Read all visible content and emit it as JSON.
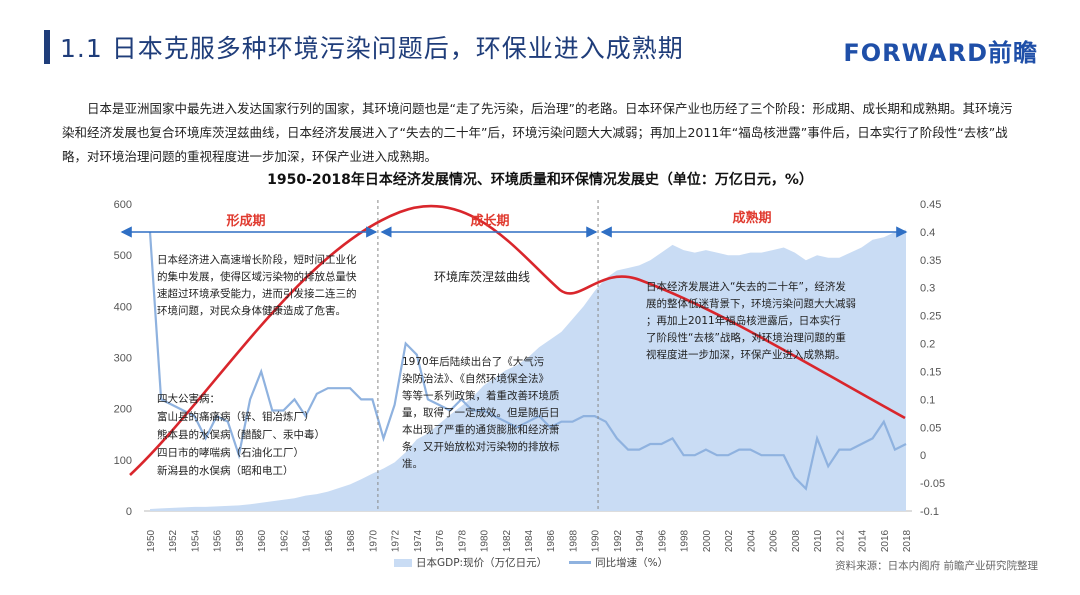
{
  "header": {
    "title": "1.1  日本克服多种环境污染问题后，环保业进入成熟期",
    "logo": "FORWARD前瞻"
  },
  "intro": "日本是亚洲国家中最先进入发达国家行列的国家，其环境问题也是“走了先污染，后治理”的老路。日本环保产业也历经了三个阶段：形成期、成长期和成熟期。其环境污染和经济发展也复合环境库茨涅兹曲线，日本经济发展进入了“失去的二十年”后，环境污染问题大大减弱；再加上2011年“福岛核泄露”事件后，日本实行了阶段性“去核”战略，对环境治理问题的重视程度进一步加深，环保产业进入成熟期。",
  "source": "资料来源：日本内阁府  前瞻产业研究院整理",
  "colors": {
    "area": "#c9dcf4",
    "growth_line": "#8fb2df",
    "kuznets": "#d9262c",
    "phase": "#e03a2f",
    "arrow": "#2f6fc4"
  },
  "chart_data": {
    "type": "area",
    "title": "1950-2018年日本经济发展情况、环境质量和环保情况发展史（单位：万亿日元，%）",
    "x": [
      1950,
      1951,
      1952,
      1953,
      1954,
      1955,
      1956,
      1957,
      1958,
      1959,
      1960,
      1961,
      1962,
      1963,
      1964,
      1965,
      1966,
      1967,
      1968,
      1969,
      1970,
      1971,
      1972,
      1973,
      1974,
      1975,
      1976,
      1977,
      1978,
      1979,
      1980,
      1981,
      1982,
      1983,
      1984,
      1985,
      1986,
      1987,
      1988,
      1989,
      1990,
      1991,
      1992,
      1993,
      1994,
      1995,
      1996,
      1997,
      1998,
      1999,
      2000,
      2001,
      2002,
      2003,
      2004,
      2005,
      2006,
      2007,
      2008,
      2009,
      2010,
      2011,
      2012,
      2013,
      2014,
      2015,
      2016,
      2017,
      2018
    ],
    "x_ticks": [
      "1950",
      "1952",
      "1954",
      "1956",
      "1958",
      "1960",
      "1962",
      "1964",
      "1966",
      "1968",
      "1970",
      "1972",
      "1974",
      "1976",
      "1978",
      "1980",
      "1982",
      "1984",
      "1986",
      "1988",
      "1990",
      "1992",
      "1994",
      "1996",
      "1998",
      "2000",
      "2002",
      "2004",
      "2006",
      "2008",
      "2010",
      "2012",
      "2014",
      "2016",
      "2018"
    ],
    "yleft_ticks": [
      0,
      100,
      200,
      300,
      400,
      500,
      600
    ],
    "yright_ticks": [
      -0.1,
      -0.05,
      0,
      0.05,
      0.1,
      0.15,
      0.2,
      0.25,
      0.3,
      0.35,
      0.4,
      0.45
    ],
    "ylim_left": [
      0,
      600
    ],
    "ylim_right": [
      -0.1,
      0.45
    ],
    "series": [
      {
        "name": "日本GDP:现价（万亿日元）",
        "axis": "left",
        "values": [
          4,
          5,
          6,
          7,
          8,
          8,
          9,
          10,
          11,
          13,
          16,
          19,
          22,
          25,
          30,
          33,
          38,
          45,
          52,
          62,
          73,
          83,
          95,
          115,
          140,
          152,
          170,
          188,
          205,
          222,
          245,
          260,
          275,
          285,
          300,
          320,
          335,
          350,
          375,
          400,
          430,
          455,
          470,
          475,
          480,
          490,
          505,
          520,
          510,
          505,
          510,
          505,
          500,
          500,
          505,
          505,
          510,
          515,
          505,
          490,
          500,
          495,
          495,
          505,
          515,
          530,
          535,
          545,
          550
        ]
      },
      {
        "name": "同比增速（%）",
        "axis": "right",
        "values": [
          0.4,
          0.1,
          0.09,
          0.08,
          0.07,
          0.03,
          0.07,
          0.06,
          0.0,
          0.1,
          0.15,
          0.08,
          0.08,
          0.1,
          0.07,
          0.11,
          0.12,
          0.12,
          0.12,
          0.1,
          0.1,
          0.03,
          0.09,
          0.2,
          0.18,
          0.1,
          0.09,
          0.08,
          0.1,
          0.08,
          0.08,
          0.07,
          0.06,
          0.05,
          0.06,
          0.07,
          0.05,
          0.06,
          0.06,
          0.07,
          0.07,
          0.06,
          0.03,
          0.01,
          0.01,
          0.02,
          0.02,
          0.03,
          0.0,
          0.0,
          0.01,
          0.0,
          0.0,
          0.01,
          0.01,
          0.0,
          0.0,
          0.0,
          -0.04,
          -0.06,
          0.03,
          -0.02,
          0.01,
          0.01,
          0.02,
          0.03,
          0.06,
          0.01,
          0.02
        ]
      }
    ],
    "kuznets_label": "环境库茨涅兹曲线",
    "phases": [
      "形成期",
      "成长期",
      "成熟期"
    ],
    "annotations": {
      "a1": "日本经济进入高速增长阶段，短时间工业化的集中发展，使得区域污染物的排放总量快速超过环境承受能力，进而引发接二连三的环境问题，对民众身体健康造成了危害。",
      "a2": "四大公害病：\n富山县的痛痛病（锌、钼冶炼厂）\n熊本县的水俣病（醋酸厂、汞中毒）\n四日市的哮喘病（石油化工厂）\n新潟县的水俣病（昭和电工）",
      "a3": "1970年后陆续出台了《大气污染防治法》、《自然环境保全法》等等一系列政策，着重改善环境质量，取得了一定成效。但是随后日本出现了严重的通货膨胀和经济萧条，又开始放松对污染物的排放标准。",
      "a4": "日本经济发展进入“失去的二十年”，经济发展的整体低迷背景下，环境污染问题大大减弱；再加上2011年福岛核泄露后，日本实行了阶段性“去核”战略，对环境治理问题的重视程度进一步加深，环保产业进入成熟期。"
    }
  }
}
